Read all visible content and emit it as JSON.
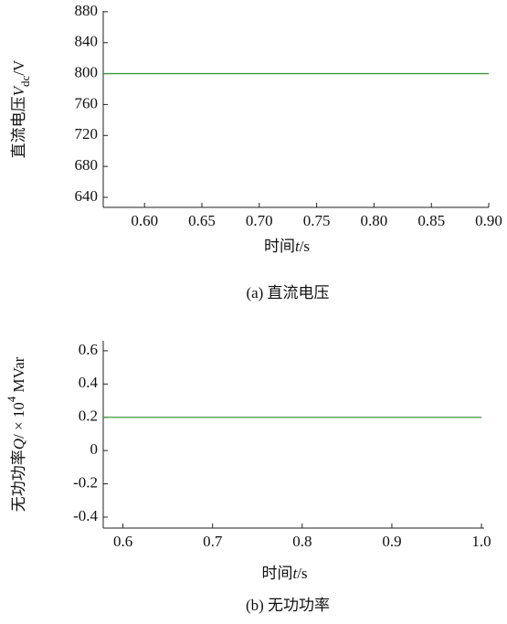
{
  "chart_data": [
    {
      "type": "line",
      "caption": "(a) 直流电压",
      "xlabel": {
        "text": "时间",
        "var": "t",
        "unit": "/s"
      },
      "ylabel": {
        "text": "直流电压",
        "var": "V",
        "sub": "dc",
        "unit": "/V"
      },
      "xlim": [
        0.564,
        0.9
      ],
      "ylim": [
        627,
        881
      ],
      "xticks": [
        {
          "value": 0.6,
          "label": "0.60"
        },
        0.65,
        {
          "value": 0.7,
          "label": "0.70"
        },
        0.75,
        {
          "value": 0.8,
          "label": "0.80"
        },
        0.85,
        {
          "value": 0.9,
          "label": "0.90"
        }
      ],
      "yticks": [
        640,
        680,
        720,
        760,
        800,
        840,
        880
      ],
      "series": [
        {
          "color": "#3a9a3a",
          "x": [
            0.564,
            0.9
          ],
          "values": [
            800,
            800
          ]
        }
      ]
    },
    {
      "type": "line",
      "caption": "(b) 无功功率",
      "xlabel": {
        "text": "时间",
        "var": "t",
        "unit": "/s"
      },
      "ylabel": {
        "text": "无功功率",
        "var": "Q",
        "unit": "/ × 10",
        "sup": "4",
        "tail": " MVar"
      },
      "xlim": [
        0.578,
        1.003
      ],
      "ylim": [
        -0.466,
        0.66
      ],
      "xticks": [
        0.6,
        0.7,
        0.8,
        0.9,
        {
          "value": 1,
          "label": "1.0"
        }
      ],
      "yticks": [
        -0.4,
        -0.2,
        0,
        0.2,
        0.4,
        0.6
      ],
      "series": [
        {
          "color": "#3a9a3a",
          "x": [
            0.578,
            1.0
          ],
          "values": [
            0.2,
            0.2
          ]
        }
      ]
    }
  ]
}
